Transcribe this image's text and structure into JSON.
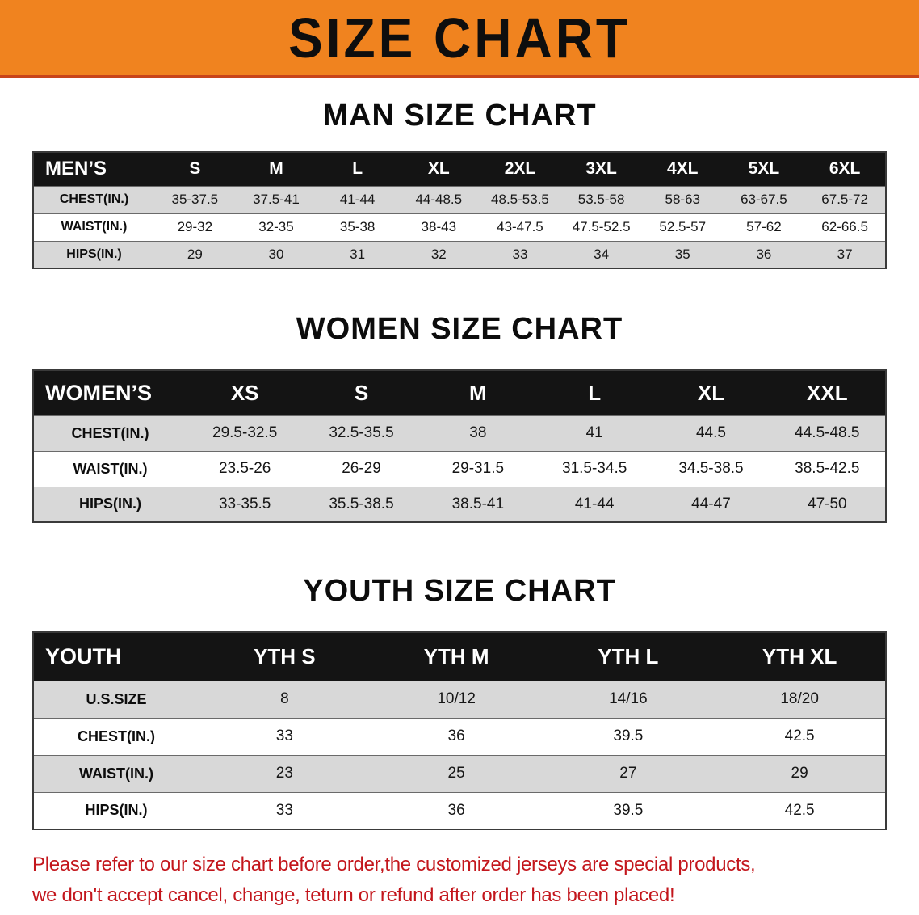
{
  "banner": {
    "title": "SIZE CHART",
    "background_color": "#F0831F"
  },
  "sections": [
    {
      "id": "men",
      "heading": "MAN SIZE CHART",
      "table": {
        "header": [
          "MEN’S",
          "S",
          "M",
          "L",
          "XL",
          "2XL",
          "3XL",
          "4XL",
          "5XL",
          "6XL"
        ],
        "rows": [
          [
            "CHEST(IN.)",
            "35-37.5",
            "37.5-41",
            "41-44",
            "44-48.5",
            "48.5-53.5",
            "53.5-58",
            "58-63",
            "63-67.5",
            "67.5-72"
          ],
          [
            "WAIST(IN.)",
            "29-32",
            "32-35",
            "35-38",
            "38-43",
            "43-47.5",
            "47.5-52.5",
            "52.5-57",
            "57-62",
            "62-66.5"
          ],
          [
            "HIPS(IN.)",
            "29",
            "30",
            "31",
            "32",
            "33",
            "34",
            "35",
            "36",
            "37"
          ]
        ]
      }
    },
    {
      "id": "women",
      "heading": "WOMEN SIZE CHART",
      "table": {
        "header": [
          "WOMEN’S",
          "XS",
          "S",
          "M",
          "L",
          "XL",
          "XXL"
        ],
        "rows": [
          [
            "CHEST(IN.)",
            "29.5-32.5",
            "32.5-35.5",
            "38",
            "41",
            "44.5",
            "44.5-48.5"
          ],
          [
            "WAIST(IN.)",
            "23.5-26",
            "26-29",
            "29-31.5",
            "31.5-34.5",
            "34.5-38.5",
            "38.5-42.5"
          ],
          [
            "HIPS(IN.)",
            "33-35.5",
            "35.5-38.5",
            "38.5-41",
            "41-44",
            "44-47",
            "47-50"
          ]
        ]
      }
    },
    {
      "id": "youth",
      "heading": "YOUTH SIZE CHART",
      "table": {
        "header": [
          "YOUTH",
          "YTH S",
          "YTH M",
          "YTH L",
          "YTH XL"
        ],
        "rows": [
          [
            "U.S.SIZE",
            "8",
            "10/12",
            "14/16",
            "18/20"
          ],
          [
            "CHEST(IN.)",
            "33",
            "36",
            "39.5",
            "42.5"
          ],
          [
            "WAIST(IN.)",
            "23",
            "25",
            "27",
            "29"
          ],
          [
            "HIPS(IN.)",
            "33",
            "36",
            "39.5",
            "42.5"
          ]
        ]
      }
    }
  ],
  "footer": {
    "lines": [
      "Please refer to our size chart before order,the customized jerseys are special products,",
      "we don't accept cancel, change, teturn or refund after order has been placed!"
    ],
    "text_color": "#C3161C"
  },
  "colors": {
    "banner_orange": "#F0831F",
    "banner_bottom_line": "#C8441A",
    "table_header_black": "#141414",
    "row_stripe_gray": "#D8D8D8",
    "note_red": "#C3161C"
  }
}
